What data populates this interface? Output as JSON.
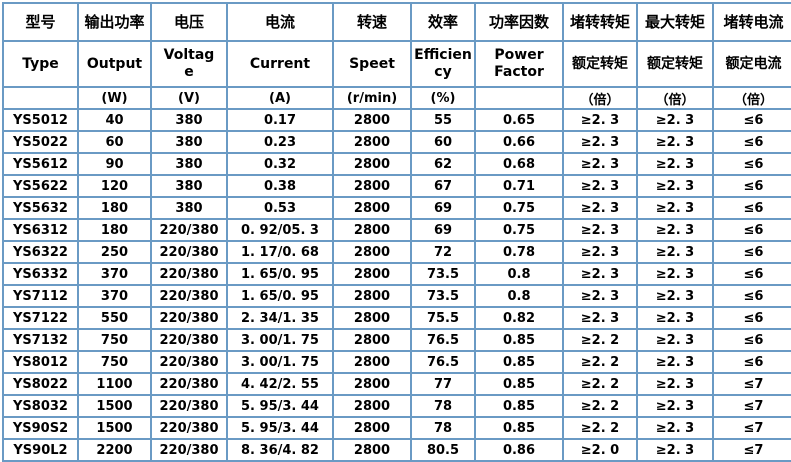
{
  "meta": {
    "border_color": "#6a9ac4",
    "text_color": "#000000",
    "background": "#ffffff"
  },
  "table": {
    "column_keys": [
      "type",
      "output",
      "voltage",
      "current",
      "speed",
      "efficiency",
      "power-factor",
      "locked-rotor-torque",
      "max-torque",
      "locked-rotor-current"
    ],
    "header": {
      "cn": [
        "型号",
        "输出功率",
        "电压",
        "电流",
        "转速",
        "效率",
        "功率因数",
        "堵转转矩",
        "最大转矩",
        "堵转电流"
      ],
      "en": [
        "Type",
        "Output",
        "Voltag\ne",
        "Current",
        "Speet",
        "Efficien\ncy",
        "Power\nFactor",
        "额定转矩",
        "额定转矩",
        "额定电流"
      ],
      "unit": [
        "",
        "(W)",
        "(V)",
        "(A)",
        "(r/min)",
        "(%)",
        "",
        "（倍）",
        "（倍）",
        "（倍）"
      ]
    },
    "rows": [
      [
        "YS5012",
        "40",
        "380",
        "0.17",
        "2800",
        "55",
        "0.65",
        "≥2. 3",
        "≥2. 3",
        "≤6"
      ],
      [
        "YS5022",
        "60",
        "380",
        "0.23",
        "2800",
        "60",
        "0.66",
        "≥2. 3",
        "≥2. 3",
        "≤6"
      ],
      [
        "YS5612",
        "90",
        "380",
        "0.32",
        "2800",
        "62",
        "0.68",
        "≥2. 3",
        "≥2. 3",
        "≤6"
      ],
      [
        "YS5622",
        "120",
        "380",
        "0.38",
        "2800",
        "67",
        "0.71",
        "≥2. 3",
        "≥2. 3",
        "≤6"
      ],
      [
        "YS5632",
        "180",
        "380",
        "0.53",
        "2800",
        "69",
        "0.75",
        "≥2. 3",
        "≥2. 3",
        "≤6"
      ],
      [
        "YS6312",
        "180",
        "220/380",
        "0. 92/05. 3",
        "2800",
        "69",
        "0.75",
        "≥2. 3",
        "≥2. 3",
        "≤6"
      ],
      [
        "YS6322",
        "250",
        "220/380",
        "1. 17/0. 68",
        "2800",
        "72",
        "0.78",
        "≥2. 3",
        "≥2. 3",
        "≤6"
      ],
      [
        "YS6332",
        "370",
        "220/380",
        "1. 65/0. 95",
        "2800",
        "73.5",
        "0.8",
        "≥2. 3",
        "≥2. 3",
        "≤6"
      ],
      [
        "YS7112",
        "370",
        "220/380",
        "1. 65/0. 95",
        "2800",
        "73.5",
        "0.8",
        "≥2. 3",
        "≥2. 3",
        "≤6"
      ],
      [
        "YS7122",
        "550",
        "220/380",
        "2. 34/1. 35",
        "2800",
        "75.5",
        "0.82",
        "≥2. 3",
        "≥2. 3",
        "≤6"
      ],
      [
        "YS7132",
        "750",
        "220/380",
        "3. 00/1. 75",
        "2800",
        "76.5",
        "0.85",
        "≥2. 2",
        "≥2. 3",
        "≤6"
      ],
      [
        "YS8012",
        "750",
        "220/380",
        "3. 00/1. 75",
        "2800",
        "76.5",
        "0.85",
        "≥2. 2",
        "≥2. 3",
        "≤6"
      ],
      [
        "YS8022",
        "1100",
        "220/380",
        "4. 42/2. 55",
        "2800",
        "77",
        "0.85",
        "≥2. 2",
        "≥2. 3",
        "≤7"
      ],
      [
        "YS8032",
        "1500",
        "220/380",
        "5. 95/3. 44",
        "2800",
        "78",
        "0.85",
        "≥2. 2",
        "≥2. 3",
        "≤7"
      ],
      [
        "YS90S2",
        "1500",
        "220/380",
        "5. 95/3. 44",
        "2800",
        "78",
        "0.85",
        "≥2. 2",
        "≥2. 3",
        "≤7"
      ],
      [
        "YS90L2",
        "2200",
        "220/380",
        "8. 36/4. 82",
        "2800",
        "80.5",
        "0.86",
        "≥2. 0",
        "≥2. 3",
        "≤7"
      ]
    ]
  }
}
